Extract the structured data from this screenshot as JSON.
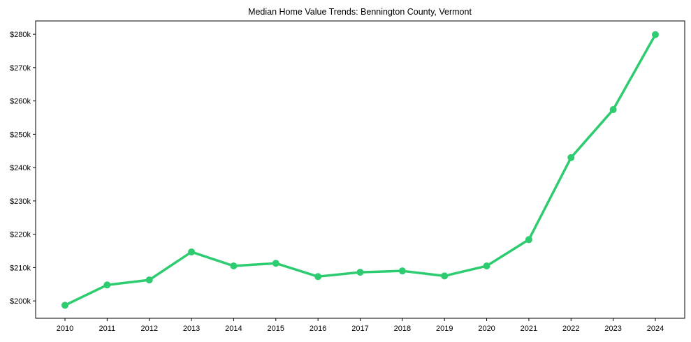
{
  "chart_data": {
    "type": "line",
    "title": "Median Home Value Trends: Bennington County, Vermont",
    "xlabel": "",
    "ylabel": "",
    "categories": [
      "2010",
      "2011",
      "2012",
      "2013",
      "2014",
      "2015",
      "2016",
      "2017",
      "2018",
      "2019",
      "2020",
      "2021",
      "2022",
      "2023",
      "2024"
    ],
    "series": [
      {
        "name": "Median Home Value",
        "color": "#2ecc71",
        "values": [
          198700,
          204800,
          206300,
          214700,
          210500,
          211300,
          207300,
          208600,
          209000,
          207500,
          210500,
          218400,
          243000,
          257400,
          279900
        ]
      }
    ],
    "yticks": [
      200000,
      210000,
      220000,
      230000,
      240000,
      250000,
      260000,
      270000,
      280000
    ],
    "ytick_labels": [
      "$200k",
      "$210k",
      "$220k",
      "$230k",
      "$240k",
      "$250k",
      "$260k",
      "$270k",
      "$280k"
    ],
    "ylim": [
      194800,
      284000
    ],
    "grid": false,
    "legend": null,
    "markers": true
  }
}
